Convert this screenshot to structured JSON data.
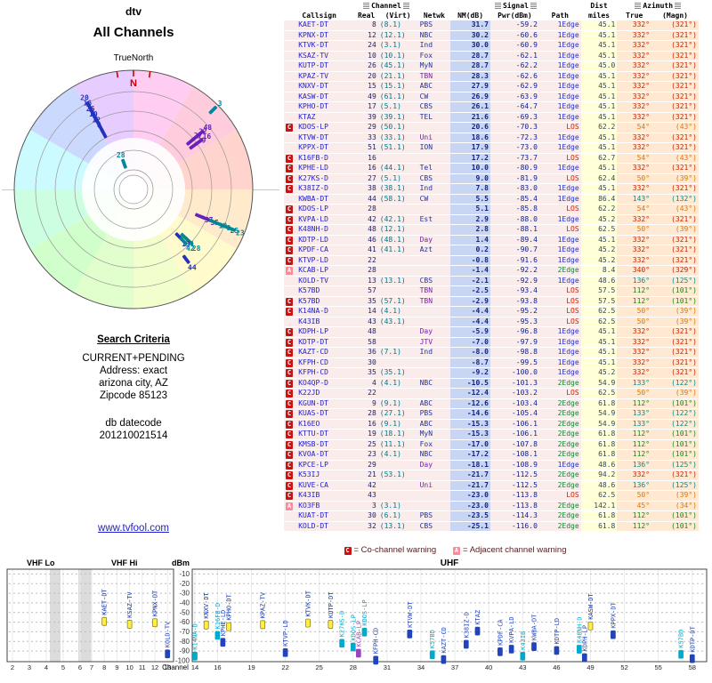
{
  "left_panel": {
    "title": "dtv",
    "subtitle": "All Channels",
    "radar_label": "TrueNorth",
    "search_criteria_heading": "Search Criteria",
    "criteria_lines": [
      "CURRENT+PENDING",
      "Address: exact",
      "arizona city, AZ",
      "Zipcode 85123"
    ],
    "datecode_label": "db datecode",
    "datecode": "201210021514",
    "link": "www.tvfool.com"
  },
  "legend": {
    "co_letter": "C",
    "co_text": "= Co-channel warning",
    "adj_letter": "A",
    "adj_text": "= Adjacent channel warning"
  },
  "table": {
    "group_headers": {
      "channel": "Channel",
      "signal": "Signal",
      "dist": "Dist",
      "azimuth": "Azimuth"
    },
    "col_headers": {
      "callsign": "Callsign",
      "real": "Real",
      "virt": "(Virt)",
      "netwk": "Netwk",
      "nm": "NM(dB)",
      "pwr": "Pwr(dBm)",
      "path": "Path",
      "miles": "miles",
      "true": "True",
      "magn": "(Magn)"
    },
    "row_fields": [
      "flag",
      "callsign",
      "real",
      "virt",
      "netwk",
      "nm_db",
      "pwr_dbm",
      "path",
      "dist_miles",
      "az_true",
      "az_magn"
    ],
    "rows": [
      [
        "",
        "KAET-DT",
        "8",
        "(8.1)",
        "PBS",
        "31.7",
        "-59.2",
        "1Edge",
        "45.1",
        "332°",
        "(321°)"
      ],
      [
        "",
        "KPNX-DT",
        "12",
        "(12.1)",
        "NBC",
        "30.2",
        "-60.6",
        "1Edge",
        "45.1",
        "332°",
        "(321°)"
      ],
      [
        "",
        "KTVK-DT",
        "24",
        "(3.1)",
        "Ind",
        "30.0",
        "-60.9",
        "1Edge",
        "45.1",
        "332°",
        "(321°)"
      ],
      [
        "",
        "KSAZ-TV",
        "10",
        "(10.1)",
        "Fox",
        "28.7",
        "-62.1",
        "1Edge",
        "45.1",
        "332°",
        "(321°)"
      ],
      [
        "",
        "KUTP-DT",
        "26",
        "(45.1)",
        "MyN",
        "28.7",
        "-62.2",
        "1Edge",
        "45.0",
        "332°",
        "(321°)"
      ],
      [
        "",
        "KPAZ-TV",
        "20",
        "(21.1)",
        "TBN",
        "28.3",
        "-62.6",
        "1Edge",
        "45.1",
        "332°",
        "(321°)"
      ],
      [
        "",
        "KNXV-DT",
        "15",
        "(15.1)",
        "ABC",
        "27.9",
        "-62.9",
        "1Edge",
        "45.1",
        "332°",
        "(321°)"
      ],
      [
        "",
        "KASW-DT",
        "49",
        "(61.1)",
        "CW",
        "26.9",
        "-63.9",
        "1Edge",
        "45.1",
        "332°",
        "(321°)"
      ],
      [
        "",
        "KPHO-DT",
        "17",
        "(5.1)",
        "CBS",
        "26.1",
        "-64.7",
        "1Edge",
        "45.1",
        "332°",
        "(321°)"
      ],
      [
        "",
        "KTAZ",
        "39",
        "(39.1)",
        "TEL",
        "21.6",
        "-69.3",
        "1Edge",
        "45.1",
        "332°",
        "(321°)"
      ],
      [
        "C",
        "KDOS-LP",
        "29",
        "(50.1)",
        "",
        "20.6",
        "-70.3",
        "LOS",
        "62.2",
        "54°",
        "(43°)"
      ],
      [
        "",
        "KTVW-DT",
        "33",
        "(33.1)",
        "Uni",
        "18.6",
        "-72.3",
        "1Edge",
        "45.1",
        "332°",
        "(321°)"
      ],
      [
        "",
        "KPPX-DT",
        "51",
        "(51.1)",
        "ION",
        "17.9",
        "-73.0",
        "1Edge",
        "45.1",
        "332°",
        "(321°)"
      ],
      [
        "C",
        "K16FB-D",
        "16",
        "",
        "",
        "17.2",
        "-73.7",
        "LOS",
        "62.7",
        "54°",
        "(43°)"
      ],
      [
        "C",
        "KPHE-LD",
        "16",
        "(44.1)",
        "Tel",
        "10.0",
        "-80.9",
        "1Edge",
        "45.1",
        "332°",
        "(321°)"
      ],
      [
        "C",
        "K27KS-D",
        "27",
        "(5.1)",
        "CBS",
        "9.0",
        "-81.9",
        "LOS",
        "62.4",
        "50°",
        "(39°)"
      ],
      [
        "C",
        "K38IZ-D",
        "38",
        "(38.1)",
        "Ind",
        "7.8",
        "-83.0",
        "1Edge",
        "45.1",
        "332°",
        "(321°)"
      ],
      [
        "",
        "KWBA-DT",
        "44",
        "(58.1)",
        "CW",
        "5.5",
        "-85.4",
        "1Edge",
        "86.4",
        "143°",
        "(132°)"
      ],
      [
        "C",
        "KDOS-LP",
        "28",
        "",
        "",
        "5.1",
        "-85.8",
        "LOS",
        "62.2",
        "54°",
        "(43°)"
      ],
      [
        "C",
        "KVPA-LD",
        "42",
        "(42.1)",
        "Est",
        "2.9",
        "-88.0",
        "1Edge",
        "45.2",
        "332°",
        "(321°)"
      ],
      [
        "C",
        "K48NH-D",
        "48",
        "(12.1)",
        "",
        "2.8",
        "-88.1",
        "LOS",
        "62.5",
        "50°",
        "(39°)"
      ],
      [
        "C",
        "KDTP-LD",
        "46",
        "(48.1)",
        "Day",
        "1.4",
        "-89.4",
        "1Edge",
        "45.1",
        "332°",
        "(321°)"
      ],
      [
        "C",
        "KPDF-CA",
        "41",
        "(41.1)",
        "Azt",
        "0.2",
        "-90.7",
        "1Edge",
        "45.2",
        "332°",
        "(321°)"
      ],
      [
        "C",
        "KTVP-LD",
        "22",
        "",
        "",
        "-0.8",
        "-91.6",
        "1Edge",
        "45.2",
        "332°",
        "(321°)"
      ],
      [
        "A",
        "KCAB-LP",
        "28",
        "",
        "",
        "-1.4",
        "-92.2",
        "2Edge",
        "8.4",
        "340°",
        "(329°)"
      ],
      [
        "",
        "KOLD-TV",
        "13",
        "(13.1)",
        "CBS",
        "-2.1",
        "-92.9",
        "1Edge",
        "48.6",
        "136°",
        "(125°)"
      ],
      [
        "",
        "K57BD",
        "57",
        "",
        "TBN",
        "-2.5",
        "-93.4",
        "LOS",
        "57.5",
        "112°",
        "(101°)"
      ],
      [
        "C",
        "K57BD",
        "35",
        "(57.1)",
        "TBN",
        "-2.9",
        "-93.8",
        "LOS",
        "57.5",
        "112°",
        "(101°)"
      ],
      [
        "C",
        "K14NA-D",
        "14",
        "(4.1)",
        "",
        "-4.4",
        "-95.2",
        "LOS",
        "62.5",
        "50°",
        "(39°)"
      ],
      [
        "",
        "K43IB",
        "43",
        "(43.1)",
        "",
        "-4.4",
        "-95.3",
        "LOS",
        "62.5",
        "50°",
        "(39°)"
      ],
      [
        "C",
        "KDPH-LP",
        "48",
        "",
        "Day",
        "-5.9",
        "-96.8",
        "1Edge",
        "45.1",
        "332°",
        "(321°)"
      ],
      [
        "C",
        "KDTP-DT",
        "58",
        "",
        "JTV",
        "-7.0",
        "-97.9",
        "1Edge",
        "45.1",
        "332°",
        "(321°)"
      ],
      [
        "C",
        "KAZT-CD",
        "36",
        "(7.1)",
        "Ind",
        "-8.0",
        "-98.8",
        "1Edge",
        "45.1",
        "332°",
        "(321°)"
      ],
      [
        "C",
        "KFPH-CD",
        "30",
        "",
        "",
        "-8.7",
        "-99.5",
        "1Edge",
        "45.1",
        "332°",
        "(321°)"
      ],
      [
        "C",
        "KFPH-CD",
        "35",
        "(35.1)",
        "",
        "-9.2",
        "-100.0",
        "1Edge",
        "45.2",
        "332°",
        "(321°)"
      ],
      [
        "C",
        "KO4QP-D",
        "4",
        "(4.1)",
        "NBC",
        "-10.5",
        "-101.3",
        "2Edge",
        "54.9",
        "133°",
        "(122°)"
      ],
      [
        "C",
        "K22JD",
        "22",
        "",
        "",
        "-12.4",
        "-103.2",
        "LOS",
        "62.5",
        "50°",
        "(39°)"
      ],
      [
        "C",
        "KGUN-DT",
        "9",
        "(9.1)",
        "ABC",
        "-12.6",
        "-103.4",
        "2Edge",
        "61.8",
        "112°",
        "(101°)"
      ],
      [
        "C",
        "KUAS-DT",
        "28",
        "(27.1)",
        "PBS",
        "-14.6",
        "-105.4",
        "2Edge",
        "54.9",
        "133°",
        "(122°)"
      ],
      [
        "C",
        "K16EO",
        "16",
        "(9.1)",
        "ABC",
        "-15.3",
        "-106.1",
        "2Edge",
        "54.9",
        "133°",
        "(122°)"
      ],
      [
        "C",
        "KTTU-DT",
        "19",
        "(18.1)",
        "MyN",
        "-15.3",
        "-106.1",
        "2Edge",
        "61.8",
        "112°",
        "(101°)"
      ],
      [
        "C",
        "KMSB-DT",
        "25",
        "(11.1)",
        "Fox",
        "-17.0",
        "-107.8",
        "2Edge",
        "61.8",
        "112°",
        "(101°)"
      ],
      [
        "C",
        "KVOA-DT",
        "23",
        "(4.1)",
        "NBC",
        "-17.2",
        "-108.1",
        "2Edge",
        "61.8",
        "112°",
        "(101°)"
      ],
      [
        "C",
        "KPCE-LP",
        "29",
        "",
        "Day",
        "-18.1",
        "-108.9",
        "1Edge",
        "48.6",
        "136°",
        "(125°)"
      ],
      [
        "C",
        "K53IJ",
        "21",
        "(53.1)",
        "",
        "-21.7",
        "-112.5",
        "2Edge",
        "94.2",
        "332°",
        "(321°)"
      ],
      [
        "C",
        "KUVE-CA",
        "42",
        "",
        "Uni",
        "-21.7",
        "-112.5",
        "2Edge",
        "48.6",
        "136°",
        "(125°)"
      ],
      [
        "C",
        "K43IB",
        "43",
        "",
        "",
        "-23.0",
        "-113.8",
        "LOS",
        "62.5",
        "50°",
        "(39°)"
      ],
      [
        "A",
        "KO3FB",
        "3",
        "(3.1)",
        "",
        "-23.0",
        "-113.8",
        "2Edge",
        "142.1",
        "45°",
        "(34°)"
      ],
      [
        "",
        "KUAT-DT",
        "30",
        "(6.1)",
        "PBS",
        "-23.5",
        "-114.3",
        "2Edge",
        "61.8",
        "112°",
        "(101°)"
      ],
      [
        "",
        "KOLD-DT",
        "32",
        "(13.1)",
        "CBS",
        "-25.1",
        "-116.0",
        "2Edge",
        "61.8",
        "112°",
        "(101°)"
      ]
    ]
  },
  "chart_data": [
    {
      "type": "scatter",
      "name": "azimuth-distance-radar",
      "title": "All Channels",
      "north_label": "N",
      "rings_miles": [
        25,
        50,
        75,
        100,
        125,
        150
      ],
      "max_miles": 160,
      "point_fields": [
        "azimuth_deg",
        "miles",
        "channel_label",
        "path"
      ],
      "points": [
        [
          332,
          45.1,
          "8",
          "1Edge"
        ],
        [
          332,
          45.1,
          "12",
          "1Edge"
        ],
        [
          332,
          45.1,
          "10",
          "1Edge"
        ],
        [
          332,
          45.1,
          "26",
          "1Edge"
        ],
        [
          332,
          45.1,
          "16",
          "1Edge"
        ],
        [
          332,
          45.1,
          "20",
          "1Edge"
        ],
        [
          54,
          62.2,
          "29",
          "LOS"
        ],
        [
          54,
          62.7,
          "16",
          "LOS"
        ],
        [
          50,
          62.4,
          "27",
          "LOS"
        ],
        [
          50,
          62.5,
          "22",
          "LOS"
        ],
        [
          50,
          62.5,
          "48",
          "LOS"
        ],
        [
          112,
          57.5,
          "57",
          "LOS"
        ],
        [
          112,
          57.5,
          "35",
          "LOS"
        ],
        [
          112,
          61.8,
          "19",
          "2Edge"
        ],
        [
          112,
          61.8,
          "9",
          "2Edge"
        ],
        [
          112,
          61.8,
          "25",
          "2Edge"
        ],
        [
          112,
          61.8,
          "23",
          "2Edge"
        ],
        [
          133,
          54.9,
          "4",
          "2Edge"
        ],
        [
          133,
          54.9,
          "28",
          "2Edge"
        ],
        [
          136,
          48.6,
          "13",
          "1Edge"
        ],
        [
          136,
          48.6,
          "42",
          "2Edge"
        ],
        [
          143,
          86.4,
          "44",
          "1Edge"
        ],
        [
          340,
          8.4,
          "28",
          "2Edge"
        ],
        [
          45,
          142.1,
          "3",
          "2Edge"
        ]
      ]
    },
    {
      "type": "scatter",
      "name": "signal-strength-by-channel",
      "ylabel": "dBm",
      "xlabel": "Channel",
      "ylim": [
        -100,
        0
      ],
      "y_ticks": [
        -10,
        -20,
        -30,
        -40,
        -50,
        -60,
        -70,
        -80,
        -90,
        -100
      ],
      "bands": [
        {
          "label": "VHF Lo",
          "range": [
            2,
            6
          ]
        },
        {
          "label": "VHF Hi",
          "range": [
            7,
            13
          ]
        },
        {
          "label": "UHF",
          "range": [
            14,
            59
          ]
        }
      ],
      "vhf_ticks": [
        2,
        3,
        4,
        5,
        6,
        7,
        8,
        9,
        10,
        11,
        12,
        13
      ],
      "uhf_ticks": [
        14,
        16,
        19,
        22,
        25,
        28,
        31,
        34,
        37,
        40,
        43,
        46,
        49,
        52,
        55,
        58
      ],
      "point_fields": [
        "channel",
        "dbm",
        "callsign",
        "path",
        "strong"
      ],
      "points": [
        [
          8,
          -59.2,
          "KAET-DT",
          "1Edge",
          1
        ],
        [
          10,
          -62.1,
          "KSAZ-TV",
          "1Edge",
          1
        ],
        [
          12,
          -60.6,
          "KPNX-DT",
          "1Edge",
          1
        ],
        [
          13,
          -92.9,
          "KOLD-TV",
          "1Edge",
          0
        ],
        [
          14,
          -95.2,
          "K14NA-D",
          "LOS",
          0
        ],
        [
          15,
          -62.9,
          "KNXV-DT",
          "1Edge",
          1
        ],
        [
          16,
          -73.7,
          "K16FB-D",
          "LOS",
          0
        ],
        [
          16,
          -80.9,
          "KPHE-LD",
          "1Edge",
          0
        ],
        [
          17,
          -64.7,
          "KPHO-DT",
          "1Edge",
          1
        ],
        [
          20,
          -62.6,
          "KPAZ-TV",
          "1Edge",
          1
        ],
        [
          22,
          -91.6,
          "KTVP-LD",
          "1Edge",
          0
        ],
        [
          24,
          -60.9,
          "KTVK-DT",
          "1Edge",
          1
        ],
        [
          26,
          -62.2,
          "KUTP-DT",
          "1Edge",
          1
        ],
        [
          27,
          -81.9,
          "K27KS-D",
          "LOS",
          0
        ],
        [
          28,
          -85.8,
          "KDOS-LP",
          "LOS",
          0
        ],
        [
          28,
          -92.2,
          "KCAB-LP",
          "2Edge",
          0
        ],
        [
          29,
          -70.3,
          "KDOS-LP",
          "LOS",
          0
        ],
        [
          30,
          -99.5,
          "KFPH-CD",
          "1Edge",
          0
        ],
        [
          33,
          -72.3,
          "KTVW-DT",
          "1Edge",
          0
        ],
        [
          35,
          -93.8,
          "K57BD",
          "LOS",
          0
        ],
        [
          36,
          -98.8,
          "KAZT-CD",
          "1Edge",
          0
        ],
        [
          38,
          -83.0,
          "K38IZ-D",
          "1Edge",
          0
        ],
        [
          39,
          -69.3,
          "KTAZ",
          "1Edge",
          0
        ],
        [
          41,
          -90.7,
          "KPDF-CA",
          "1Edge",
          0
        ],
        [
          42,
          -88.0,
          "KVPA-LD",
          "1Edge",
          0
        ],
        [
          43,
          -95.3,
          "K43IB",
          "LOS",
          0
        ],
        [
          44,
          -85.4,
          "KWBA-DT",
          "1Edge",
          0
        ],
        [
          46,
          -89.4,
          "KDTP-LD",
          "1Edge",
          0
        ],
        [
          48,
          -88.1,
          "K48NH-D",
          "LOS",
          0
        ],
        [
          48,
          -96.8,
          "KDPH-LP",
          "1Edge",
          0
        ],
        [
          49,
          -63.9,
          "KASW-DT",
          "1Edge",
          1
        ],
        [
          51,
          -73.0,
          "KPPX-DT",
          "1Edge",
          0
        ],
        [
          57,
          -93.4,
          "K57BD",
          "LOS",
          0
        ],
        [
          58,
          -97.9,
          "KDTP-DT",
          "1Edge",
          0
        ]
      ]
    }
  ],
  "colors": {
    "link": "#2222cc",
    "callsign": "#2222cc",
    "flag": {
      "C": "#cc1111",
      "A": "#ff8899"
    },
    "path_table": {
      "1Edge": "#2233cc",
      "LOS": "#cc2200",
      "2Edge": "#118833"
    },
    "path_radar": {
      "1Edge": "#2233bb",
      "LOS": "#6622bb",
      "2Edge": "#008899"
    },
    "path_chart": {
      "1Edge": "#2244bb",
      "LOS": "#00aacc",
      "2Edge": "#9944bb"
    },
    "strong_fill": "#ffee44",
    "strong_stroke": "#887700",
    "strong_label": "#1133aa",
    "azimuth_north": "#cc2200",
    "azimuth_east": "#dd7700",
    "azimuth_ese": "#1a8a1a",
    "azimuth_se": "#0a8a8a",
    "network_purple_list": [
      "TBN",
      "Uni",
      "Day",
      "JTV"
    ],
    "network_default": "#223399",
    "network_alt": "#7722aa",
    "nm_bg": "#c9d6f3",
    "dist_bg": "#ffffd8",
    "az_bg": "#ffe9d2",
    "row_bg": "#fbecec",
    "north_mark": "#cc0000"
  }
}
